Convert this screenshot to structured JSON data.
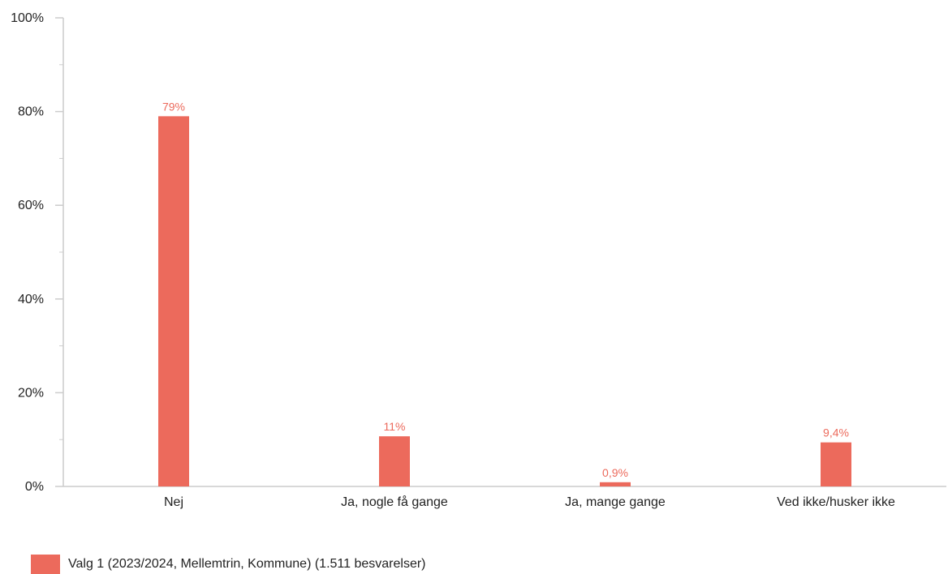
{
  "chart_data": {
    "type": "bar",
    "categories": [
      "Nej",
      "Ja, nogle få gange",
      "Ja, mange gange",
      "Ved ikke/husker ikke"
    ],
    "series": [
      {
        "name": "Valg 1 (2023/2024, Mellemtrin, Kommune) (1.511 besvarelser)",
        "values": [
          79,
          10.7,
          0.9,
          9.4
        ],
        "labels": [
          "79%",
          "11%",
          "0,9%",
          "9,4%"
        ],
        "color": "#ec6a5c"
      }
    ],
    "yticks": [
      "0%",
      "20%",
      "40%",
      "60%",
      "80%",
      "100%"
    ],
    "ylim": [
      0,
      100
    ],
    "ytick_step": 20,
    "minor_ticks": true,
    "grid": false,
    "legend_position": "bottom-left",
    "title": "",
    "xlabel": "",
    "ylabel": ""
  }
}
